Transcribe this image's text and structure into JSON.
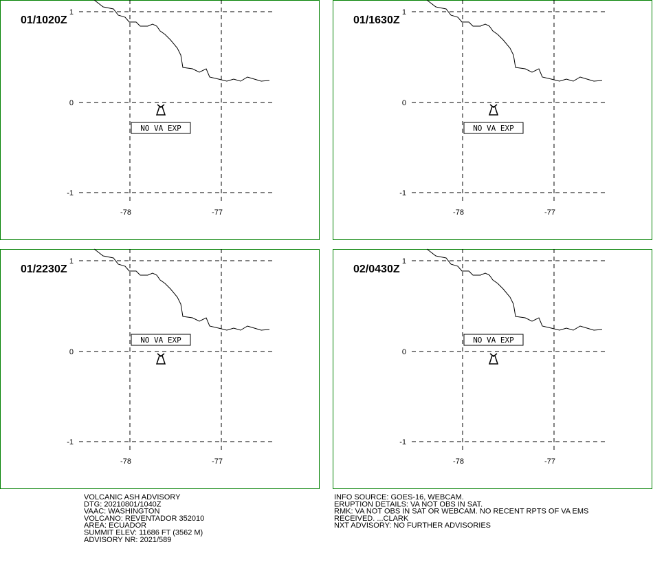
{
  "panels": [
    {
      "time": "01/1020Z",
      "label": "NO VA EXP"
    },
    {
      "time": "01/1630Z",
      "label": "NO VA EXP"
    },
    {
      "time": "01/2230Z",
      "label": "NO VA EXP"
    },
    {
      "time": "02/0430Z",
      "label": "NO VA EXP"
    }
  ],
  "lat_labels": [
    "1",
    "0",
    "-1"
  ],
  "lon_labels": [
    "-78",
    "-77"
  ],
  "advisory_left": [
    "VOLCANIC ASH ADVISORY",
    "DTG: 20210801/1040Z",
    "VAAC: WASHINGTON",
    "VOLCANO: REVENTADOR 352010",
    "AREA: ECUADOR",
    "SUMMIT ELEV: 11686 FT (3562 M)",
    "ADVISORY NR: 2021/589"
  ],
  "advisory_right": [
    "INFO SOURCE: GOES-16, WEBCAM.",
    "ERUPTION DETAILS: VA NOT OBS IN SAT.",
    "RMK: VA NOT OBS IN SAT OR WEBCAM. NO RECENT RPTS OF VA EMS",
    "RECEIVED. ...CLARK",
    "NXT ADVISORY: NO FURTHER ADVISORIES"
  ]
}
